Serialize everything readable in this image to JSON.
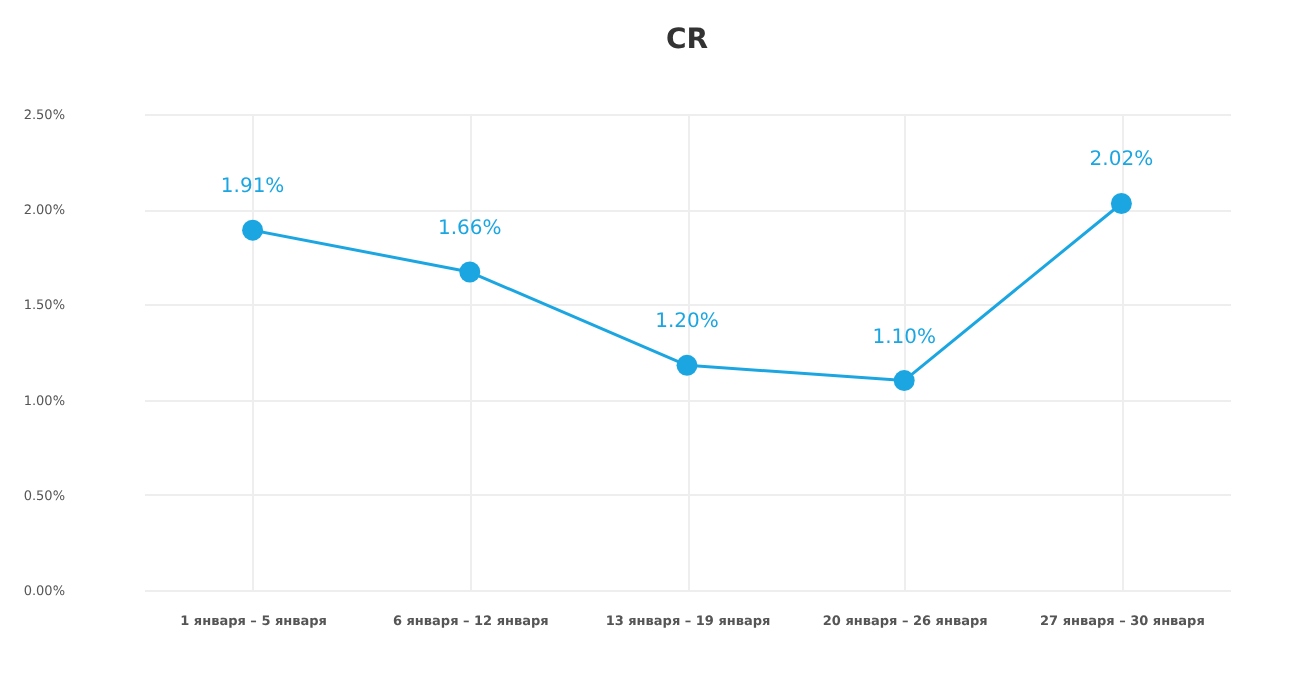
{
  "chart_data": {
    "type": "line",
    "title": "CR",
    "categories": [
      "1 января – 5 января",
      "6 января – 12 января",
      "13 января – 19 января",
      "20 января – 26 января",
      "27 января – 30 января"
    ],
    "series": [
      {
        "color": "#1ba6e2",
        "values": [
          1.89,
          1.67,
          1.18,
          1.1,
          2.03
        ]
      }
    ],
    "value_labels": [
      "1.91%",
      "1.66%",
      "1.20%",
      "1.10%",
      "2.02%"
    ],
    "ylim": [
      0,
      2.5
    ],
    "yticks": [
      {
        "value": 0,
        "label": "0.00%"
      },
      {
        "value": 0.5,
        "label": "0.50%"
      },
      {
        "value": 1,
        "label": "1.00%"
      },
      {
        "value": 1.5,
        "label": "1.50%"
      },
      {
        "value": 2,
        "label": "2.00%"
      },
      {
        "value": 2.5,
        "label": "2.50%"
      }
    ],
    "grid": true,
    "marker": "circle",
    "line_style": "solid"
  }
}
